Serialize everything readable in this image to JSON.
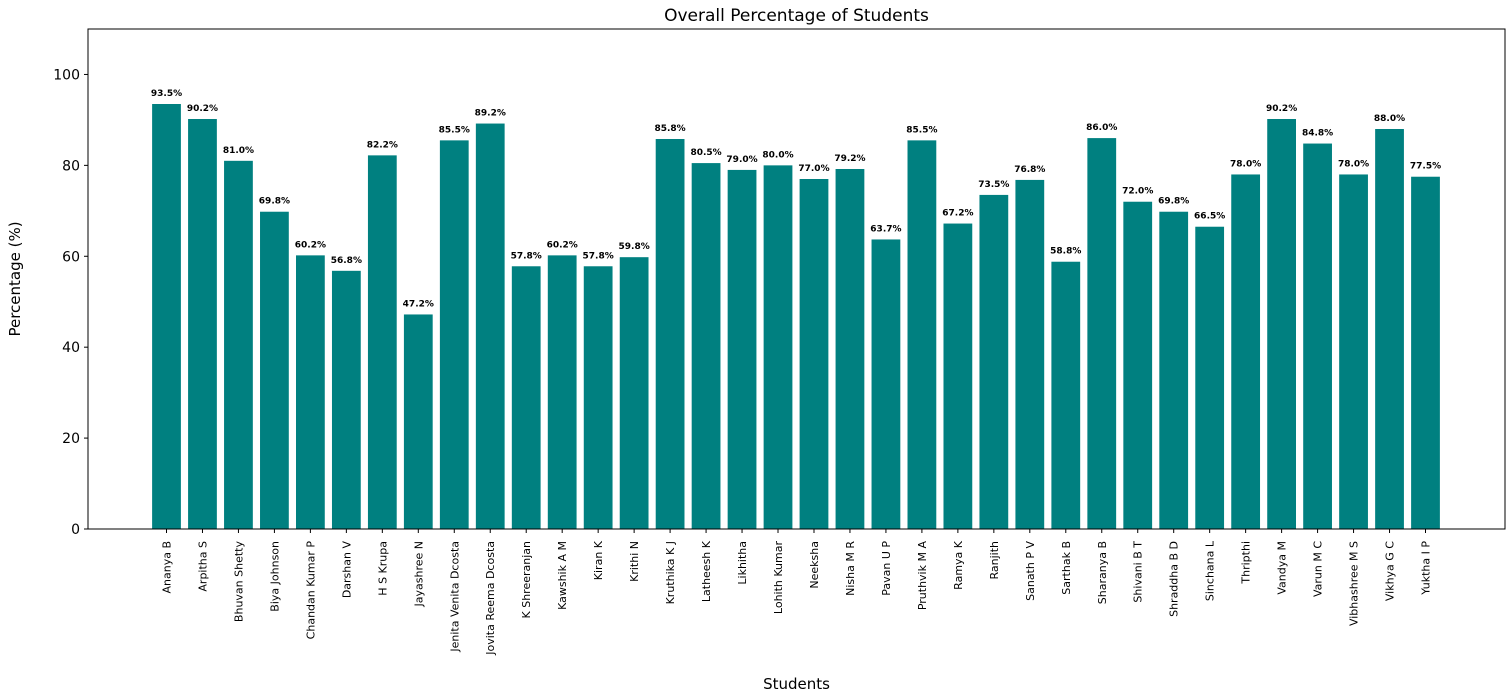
{
  "chart_data": {
    "type": "bar",
    "title": "Overall Percentage of Students",
    "xlabel": "Students",
    "ylabel": "Percentage (%)",
    "ylim": [
      0,
      110
    ],
    "yticks": [
      0,
      20,
      40,
      60,
      80,
      100
    ],
    "bar_color": "#008080",
    "grid": false,
    "legend": "none",
    "categories": [
      "Ananya B",
      "Arpitha S",
      "Bhuvan Shetty",
      "Biya Johnson",
      "Chandan Kumar P",
      "Darshan V",
      "H S Krupa",
      "Jayashree N",
      "Jenita Venita Dcosta",
      "Jovita Reema Dcosta",
      "K Shreeranjan",
      "Kawshik A M",
      "Kiran K",
      "Krithi N",
      "Kruthika K J",
      "Latheesh K",
      "Likhitha",
      "Lohith Kumar",
      "Neeksha",
      "Nisha M R",
      "Pavan U P",
      "Pruthvik M A",
      "Ramya K",
      "Ranjith",
      "Sanath P V",
      "Sarthak B",
      "Sharanya B",
      "Shivani B T",
      "Shraddha B D",
      "Sinchana L",
      "Thripthi",
      "Vandya M",
      "Varun M C",
      "Vibhashree M S",
      "Vikhya G C",
      "Yuktha I P"
    ],
    "values": [
      93.5,
      90.2,
      81.0,
      69.8,
      60.2,
      56.8,
      82.2,
      47.2,
      85.5,
      89.2,
      57.8,
      60.2,
      57.8,
      59.8,
      85.8,
      80.5,
      79.0,
      80.0,
      77.0,
      79.2,
      63.7,
      85.5,
      67.2,
      73.5,
      76.8,
      58.8,
      86.0,
      72.0,
      69.8,
      66.5,
      78.0,
      90.2,
      84.8,
      78.0,
      88.0,
      77.5
    ],
    "labels": [
      "93.5%",
      "90.2%",
      "81.0%",
      "69.8%",
      "60.2%",
      "56.8%",
      "82.2%",
      "47.2%",
      "85.5%",
      "89.2%",
      "57.8%",
      "60.2%",
      "57.8%",
      "59.8%",
      "85.8%",
      "80.5%",
      "79.0%",
      "80.0%",
      "77.0%",
      "79.2%",
      "63.7%",
      "85.5%",
      "67.2%",
      "73.5%",
      "76.8%",
      "58.8%",
      "86.0%",
      "72.0%",
      "69.8%",
      "66.5%",
      "78.0%",
      "90.2%",
      "84.8%",
      "78.0%",
      "88.0%",
      "77.5%"
    ]
  }
}
